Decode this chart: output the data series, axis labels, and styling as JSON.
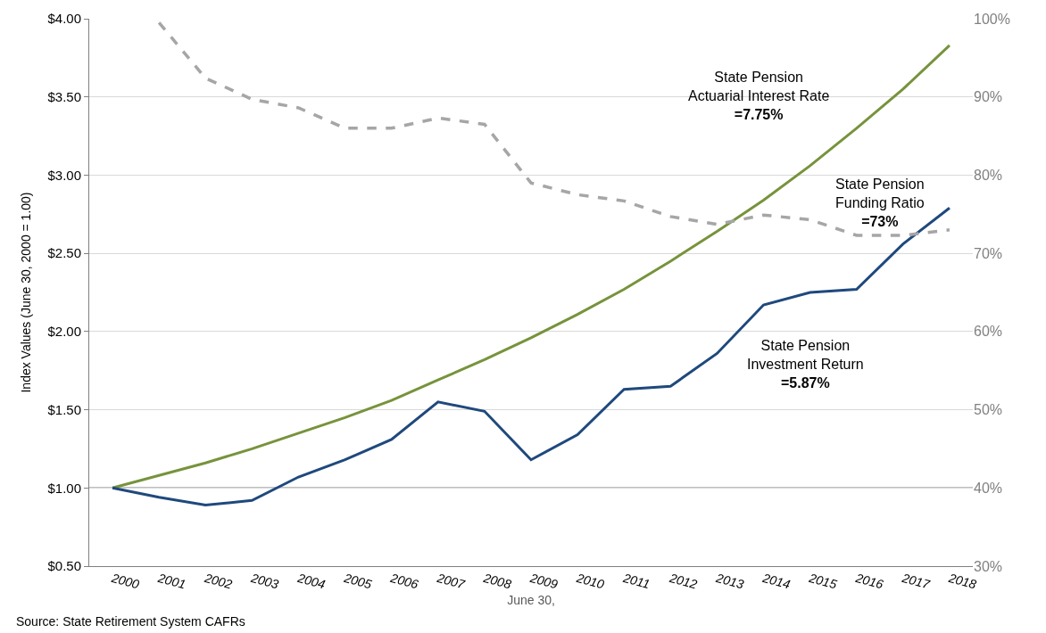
{
  "chart_data": {
    "type": "line",
    "xlabel": "June 30,",
    "ylabel": "Index Values (June 30, 2000 = 1.00)",
    "categories": [
      "2000",
      "2001",
      "2002",
      "2003",
      "2004",
      "2005",
      "2006",
      "2007",
      "2008",
      "2009",
      "2010",
      "2011",
      "2012",
      "2013",
      "2014",
      "2015",
      "2016",
      "2017",
      "2018"
    ],
    "series": [
      {
        "name": "State Pension\nActuarial Interest Rate\n=7.75%",
        "color": "#77933c",
        "line_style": "solid",
        "values": [
          1.0,
          1.08,
          1.16,
          1.25,
          1.35,
          1.45,
          1.56,
          1.69,
          1.82,
          1.96,
          2.11,
          2.27,
          2.45,
          2.64,
          2.84,
          3.06,
          3.3,
          3.55,
          3.83
        ]
      },
      {
        "name": "State Pension\nFunding Ratio\n=73%",
        "color": "#a6a6a6",
        "axis": "y2",
        "line_style": "dashed",
        "values": [
          null,
          99.5,
          92.4,
          89.7,
          88.6,
          86,
          86,
          87.3,
          86.5,
          79,
          77.5,
          76.7,
          74.7,
          73.7,
          74.9,
          74.3,
          72.3,
          72.3,
          73
        ]
      },
      {
        "name": "State Pension\nInvestment Return\n=5.87%",
        "color": "#1f497d",
        "line_style": "solid",
        "values": [
          1.0,
          0.94,
          0.89,
          0.92,
          1.07,
          1.18,
          1.31,
          1.55,
          1.49,
          1.18,
          1.34,
          1.63,
          1.65,
          1.86,
          2.17,
          2.25,
          2.27,
          2.56,
          2.79
        ]
      }
    ],
    "ylim": [
      0.5,
      4.0
    ],
    "yticks": [
      {
        "value": 0.5,
        "label": "$0.50"
      },
      {
        "value": 1.0,
        "label": "$1.00"
      },
      {
        "value": 1.5,
        "label": "$1.50"
      },
      {
        "value": 2.0,
        "label": "$2.00"
      },
      {
        "value": 2.5,
        "label": "$2.50"
      },
      {
        "value": 3.0,
        "label": "$3.00"
      },
      {
        "value": 3.5,
        "label": "$3.50"
      },
      {
        "value": 4.0,
        "label": "$4.00"
      }
    ],
    "y2lim": [
      30,
      100
    ],
    "y2ticks": [
      {
        "value": 30,
        "label": "30%"
      },
      {
        "value": 40,
        "label": "40%"
      },
      {
        "value": 50,
        "label": "50%"
      },
      {
        "value": 60,
        "label": "60%"
      },
      {
        "value": 70,
        "label": "70%"
      },
      {
        "value": 80,
        "label": "80%"
      },
      {
        "value": 90,
        "label": "90%"
      },
      {
        "value": 100,
        "label": "100%"
      }
    ],
    "ref_lines": [
      {
        "axis": "y",
        "value": 1.0,
        "color": "#808080"
      }
    ],
    "grid": "y",
    "legend": false,
    "marker": "none",
    "annotations": [
      "Source: State Retirement System CAFRs"
    ]
  }
}
